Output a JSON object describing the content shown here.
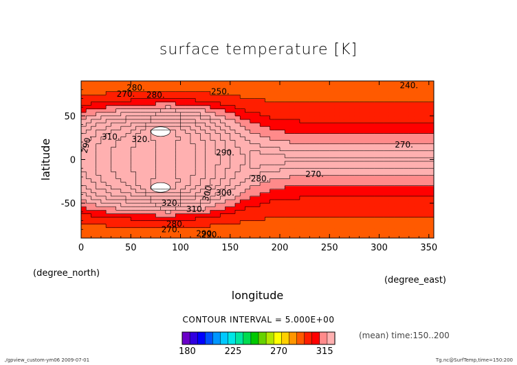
{
  "chart_data": {
    "type": "heatmap",
    "title": "surface temperature [K]",
    "xlabel": "longitude",
    "ylabel": "latitude",
    "x_unit": "(degree_east)",
    "y_unit": "(degree_north)",
    "xlim": [
      0,
      355
    ],
    "ylim": [
      -90,
      90
    ],
    "x_ticks": [
      0,
      50,
      100,
      150,
      200,
      250,
      300,
      350
    ],
    "y_ticks": [
      -50,
      0,
      50
    ],
    "contour_interval_text": "CONTOUR INTERVAL = 5.000E+00",
    "time_note": "(mean) time:150..200",
    "colorbar": {
      "min": 175,
      "max": 320,
      "step": 5,
      "tick_values": [
        180,
        225,
        270,
        315
      ],
      "colors": [
        "#6a00c8",
        "#3000e0",
        "#0000ff",
        "#0050ff",
        "#0096ff",
        "#00c8ff",
        "#00e6e6",
        "#00e6a0",
        "#00dc50",
        "#00c800",
        "#66d200",
        "#b4e600",
        "#ffff00",
        "#ffd000",
        "#ff9600",
        "#ff5a00",
        "#ff1e00",
        "#ff0000",
        "#ff8a8a",
        "#ffb0b0"
      ]
    },
    "contour_labels": [
      "280.",
      "270.",
      "280.",
      "250.",
      "240.",
      "290.",
      "300.",
      "310.",
      "320.",
      "290.",
      "270.",
      "270.",
      "280.",
      "300.",
      "320.",
      "310.",
      "280.",
      "270.",
      "290.",
      "290."
    ]
  },
  "footer": {
    "left": "./gpview_custom-ym06   2009-07-01",
    "right": "Tg.nc@SurfTemp,time=150:200"
  }
}
